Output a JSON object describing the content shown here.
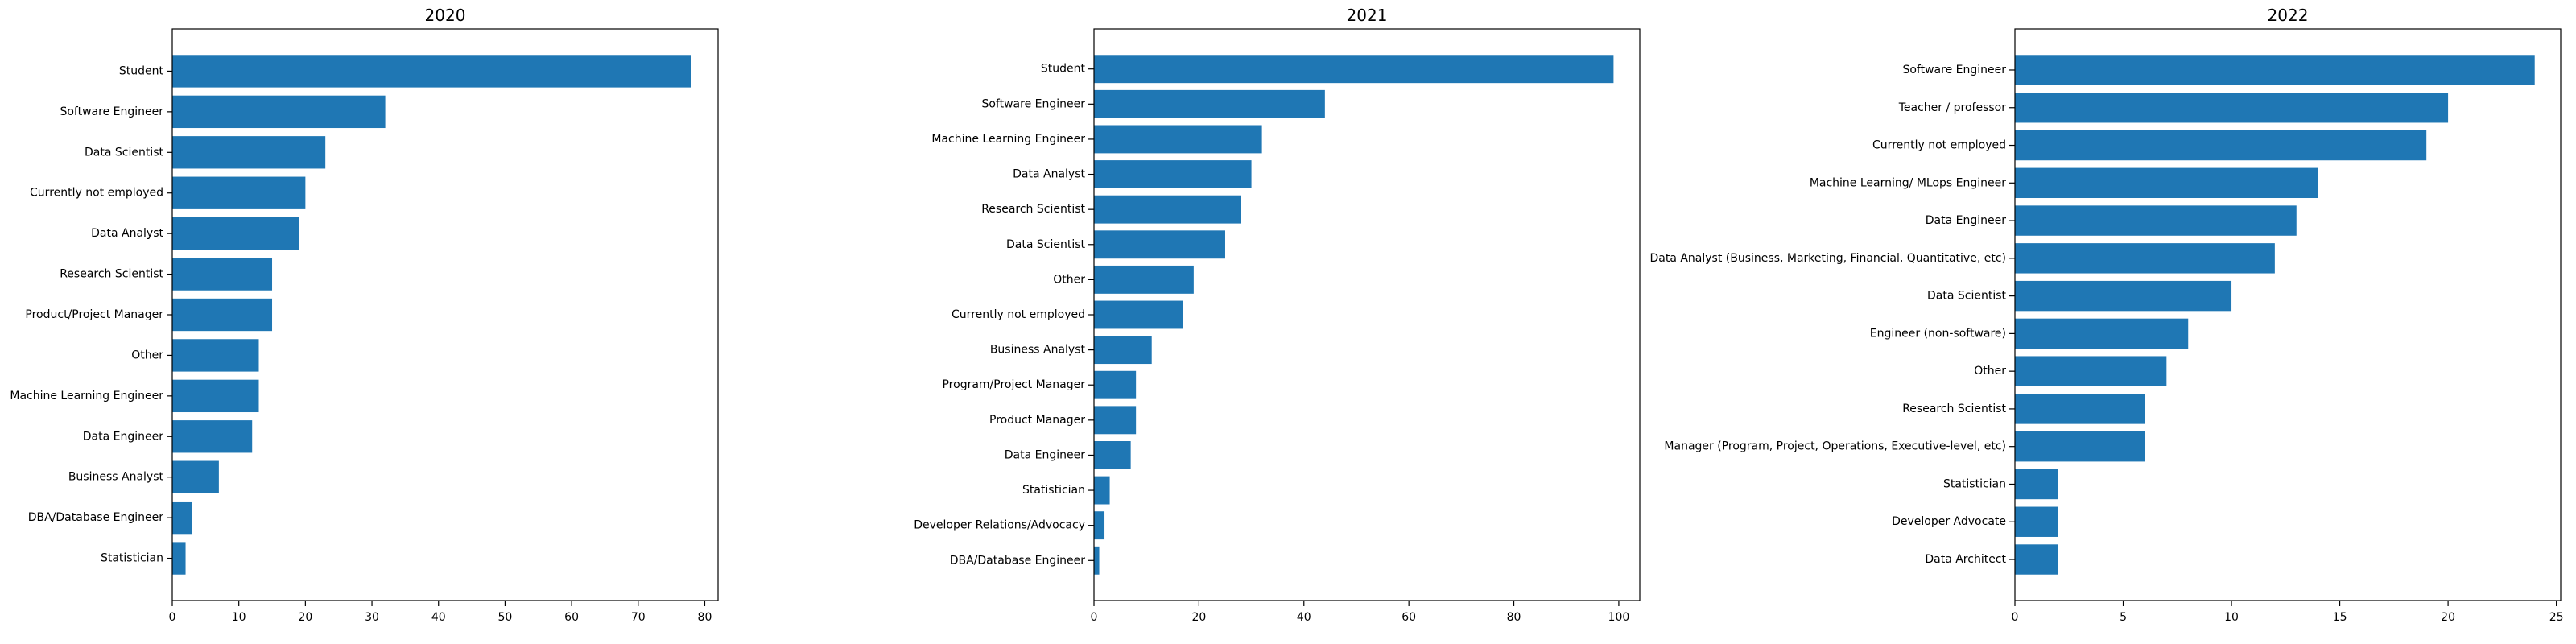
{
  "bar_color": "#1f77b4",
  "chart_data": [
    {
      "type": "bar",
      "orientation": "horizontal",
      "title": "2020",
      "xlabel": "",
      "ylabel": "",
      "xlim": [
        0,
        82
      ],
      "xticks": [
        0,
        10,
        20,
        30,
        40,
        50,
        60,
        70,
        80
      ],
      "grid": false,
      "categories": [
        "Student",
        "Software Engineer",
        "Data Scientist",
        "Currently not employed",
        "Data Analyst",
        "Research Scientist",
        "Product/Project Manager",
        "Other",
        "Machine Learning Engineer",
        "Data Engineer",
        "Business Analyst",
        "DBA/Database Engineer",
        "Statistician"
      ],
      "values": [
        78,
        32,
        23,
        20,
        19,
        15,
        15,
        13,
        13,
        12,
        7,
        3,
        2
      ]
    },
    {
      "type": "bar",
      "orientation": "horizontal",
      "title": "2021",
      "xlabel": "",
      "ylabel": "",
      "xlim": [
        0,
        104
      ],
      "xticks": [
        0,
        20,
        40,
        60,
        80,
        100
      ],
      "grid": false,
      "categories": [
        "Student",
        "Software Engineer",
        "Machine Learning Engineer",
        "Data Analyst",
        "Research Scientist",
        "Data Scientist",
        "Other",
        "Currently not employed",
        "Business Analyst",
        "Program/Project Manager",
        "Product Manager",
        "Data Engineer",
        "Statistician",
        "Developer Relations/Advocacy",
        "DBA/Database Engineer"
      ],
      "values": [
        99,
        44,
        32,
        30,
        28,
        25,
        19,
        17,
        11,
        8,
        8,
        7,
        3,
        2,
        1
      ]
    },
    {
      "type": "bar",
      "orientation": "horizontal",
      "title": "2022",
      "xlabel": "",
      "ylabel": "",
      "xlim": [
        0,
        25.2
      ],
      "xticks": [
        0,
        5,
        10,
        15,
        20,
        25
      ],
      "grid": false,
      "categories": [
        "Software Engineer",
        "Teacher / professor",
        "Currently not employed",
        "Machine Learning/ MLops Engineer",
        "Data Engineer",
        "Data Analyst (Business, Marketing, Financial, Quantitative, etc)",
        "Data Scientist",
        "Engineer (non-software)",
        "Other",
        "Research Scientist",
        "Manager (Program, Project, Operations, Executive-level, etc)",
        "Statistician",
        "Developer Advocate",
        "Data Architect"
      ],
      "values": [
        24,
        20,
        19,
        14,
        13,
        12,
        10,
        8,
        7,
        6,
        6,
        2,
        2,
        2
      ]
    }
  ]
}
